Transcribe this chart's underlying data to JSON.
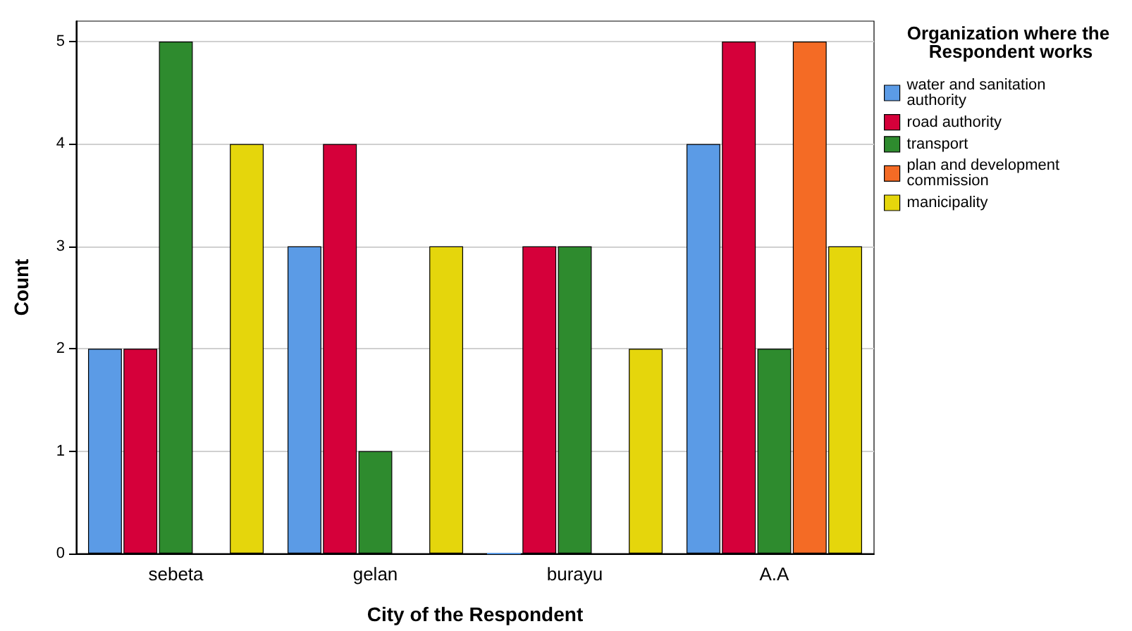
{
  "chart_data": {
    "type": "bar",
    "xlabel": "City of the Respondent",
    "ylabel": "Count",
    "legend_title": "Organization where the Respondent works",
    "categories": [
      "sebeta",
      "gelan",
      "burayu",
      "A.A"
    ],
    "series": [
      {
        "name": "water and sanitation authority",
        "color": "#5b9be6",
        "values": [
          2,
          3,
          0,
          4
        ]
      },
      {
        "name": "road authority",
        "color": "#d5003a",
        "values": [
          2,
          4,
          3,
          5
        ]
      },
      {
        "name": "transport",
        "color": "#2e8b2e",
        "values": [
          5,
          1,
          3,
          2
        ]
      },
      {
        "name": "plan and development commission",
        "color": "#f46b25",
        "values": [
          null,
          null,
          null,
          5
        ]
      },
      {
        "name": "manicipality",
        "color": "#e5d60c",
        "values": [
          4,
          3,
          2,
          3
        ]
      }
    ],
    "ylim": [
      0,
      5.2
    ],
    "yticks": [
      0,
      1,
      2,
      3,
      4,
      5
    ],
    "grid": "y",
    "legend": "top right"
  }
}
